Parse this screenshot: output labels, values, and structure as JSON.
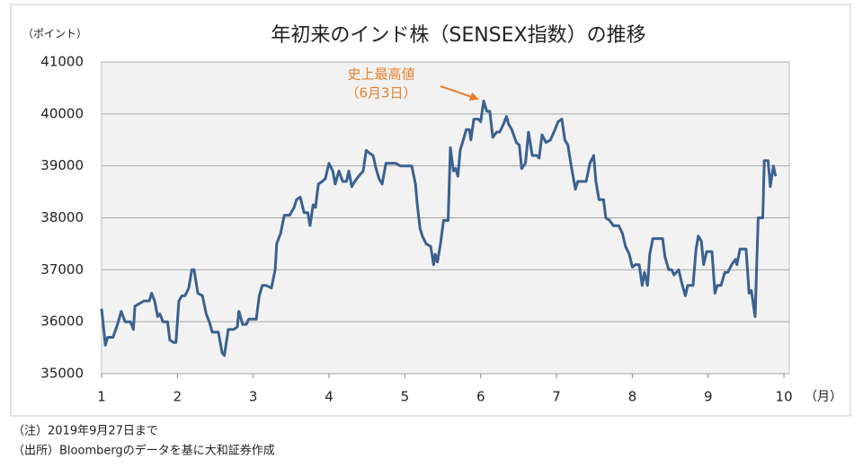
{
  "chart_data": {
    "type": "line",
    "title": "年初来のインド株（SENSEX指数）の推移",
    "y_label": "（ポイント）",
    "x_label": "（月）",
    "annotation": [
      "史上最高値",
      "（6月3日）"
    ],
    "notes": [
      "（注）2019年9月27日まで",
      "（出所）Bloombergのデータを基に大和証券作成"
    ],
    "xlim": [
      1,
      10.07
    ],
    "xticks": [
      1,
      2,
      3,
      4,
      5,
      6,
      7,
      8,
      9,
      10
    ],
    "ylim": [
      35000,
      41000
    ],
    "yticks": [
      35000,
      36000,
      37000,
      38000,
      39000,
      40000,
      41000
    ],
    "grid": true,
    "x": [
      1.0,
      1.05,
      1.08,
      1.15,
      1.21,
      1.26,
      1.31,
      1.38,
      1.42,
      1.44,
      1.5,
      1.56,
      1.63,
      1.66,
      1.7,
      1.74,
      1.77,
      1.81,
      1.87,
      1.9,
      1.95,
      1.98,
      2.02,
      2.06,
      2.1,
      2.15,
      2.19,
      2.22,
      2.27,
      2.33,
      2.38,
      2.42,
      2.46,
      2.54,
      2.59,
      2.62,
      2.67,
      2.74,
      2.79,
      2.81,
      2.86,
      2.91,
      2.94,
      3.04,
      3.08,
      3.12,
      3.17,
      3.24,
      3.29,
      3.31,
      3.36,
      3.41,
      3.48,
      3.54,
      3.57,
      3.62,
      3.67,
      3.72,
      3.75,
      3.79,
      3.82,
      3.86,
      3.91,
      3.95,
      4.0,
      4.05,
      4.08,
      4.13,
      4.18,
      4.23,
      4.26,
      4.3,
      4.34,
      4.39,
      4.45,
      4.49,
      4.53,
      4.58,
      4.62,
      4.66,
      4.7,
      4.75,
      4.79,
      4.88,
      4.94,
      5.02,
      5.09,
      5.14,
      5.16,
      5.2,
      5.23,
      5.28,
      5.34,
      5.38,
      5.4,
      5.43,
      5.47,
      5.51,
      5.57,
      5.6,
      5.64,
      5.67,
      5.7,
      5.73,
      5.77,
      5.81,
      5.85,
      5.87,
      5.91,
      5.97,
      6.0,
      6.04,
      6.08,
      6.12,
      6.16,
      6.21,
      6.25,
      6.3,
      6.34,
      6.37,
      6.41,
      6.47,
      6.51,
      6.54,
      6.59,
      6.63,
      6.68,
      6.74,
      6.77,
      6.81,
      6.86,
      6.92,
      6.98,
      7.02,
      7.07,
      7.11,
      7.15,
      7.2,
      7.25,
      7.28,
      7.33,
      7.39,
      7.44,
      7.49,
      7.52,
      7.56,
      7.62,
      7.65,
      7.7,
      7.75,
      7.82,
      7.87,
      7.91,
      7.96,
      8.0,
      8.04,
      8.09,
      8.13,
      8.16,
      8.2,
      8.23,
      8.27,
      8.35,
      8.4,
      8.43,
      8.48,
      8.52,
      8.55,
      8.61,
      8.66,
      8.7,
      8.73,
      8.8,
      8.84,
      8.87,
      8.91,
      8.94,
      8.98,
      9.05,
      9.09,
      9.12,
      9.17,
      9.22,
      9.26,
      9.31,
      9.36,
      9.38,
      9.42,
      9.5,
      9.54,
      9.57,
      9.62,
      9.66,
      9.72,
      9.74,
      9.79,
      9.82,
      9.86,
      9.89
    ],
    "series": [
      {
        "color": "#3b6190",
        "values": [
          36250,
          35550,
          35700,
          35700,
          35950,
          36200,
          36000,
          36000,
          35850,
          36300,
          36350,
          36400,
          36400,
          36550,
          36400,
          36100,
          36150,
          36000,
          36000,
          35650,
          35600,
          35600,
          36400,
          36500,
          36500,
          36650,
          37000,
          37000,
          36550,
          36500,
          36150,
          36000,
          35800,
          35800,
          35400,
          35350,
          35850,
          35850,
          35900,
          36200,
          35950,
          35950,
          36050,
          36050,
          36500,
          36700,
          36700,
          36650,
          37000,
          37500,
          37700,
          38050,
          38050,
          38200,
          38350,
          38400,
          38100,
          38100,
          37850,
          38250,
          38200,
          38650,
          38700,
          38750,
          39050,
          38900,
          38650,
          38900,
          38700,
          38700,
          38900,
          38600,
          38700,
          38800,
          38900,
          39300,
          39250,
          39200,
          38950,
          38750,
          38650,
          39050,
          39050,
          39050,
          39000,
          39000,
          39000,
          38650,
          38300,
          37800,
          37650,
          37500,
          37450,
          37100,
          37300,
          37150,
          37500,
          37950,
          37950,
          39350,
          38900,
          38950,
          38800,
          39300,
          39500,
          39700,
          39700,
          39500,
          39900,
          39900,
          39850,
          40250,
          40050,
          40050,
          39550,
          39650,
          39650,
          39800,
          39950,
          39800,
          39700,
          39450,
          39400,
          38950,
          39050,
          39650,
          39200,
          39200,
          39150,
          39600,
          39450,
          39500,
          39700,
          39850,
          39900,
          39500,
          39400,
          38950,
          38550,
          38700,
          38700,
          38700,
          39050,
          39200,
          38700,
          38350,
          38350,
          38000,
          37950,
          37850,
          37850,
          37700,
          37450,
          37300,
          37050,
          37100,
          37100,
          36700,
          36950,
          36700,
          37300,
          37600,
          37600,
          37600,
          37250,
          37000,
          37000,
          36900,
          37000,
          36700,
          36500,
          36700,
          36700,
          37400,
          37650,
          37550,
          37100,
          37350,
          37350,
          36550,
          36700,
          36700,
          36950,
          36950,
          37100,
          37200,
          37100,
          37400,
          37400,
          36550,
          36600,
          36100,
          38000,
          38000,
          39100,
          39100,
          38600,
          39000,
          38800
        ]
      }
    ]
  }
}
